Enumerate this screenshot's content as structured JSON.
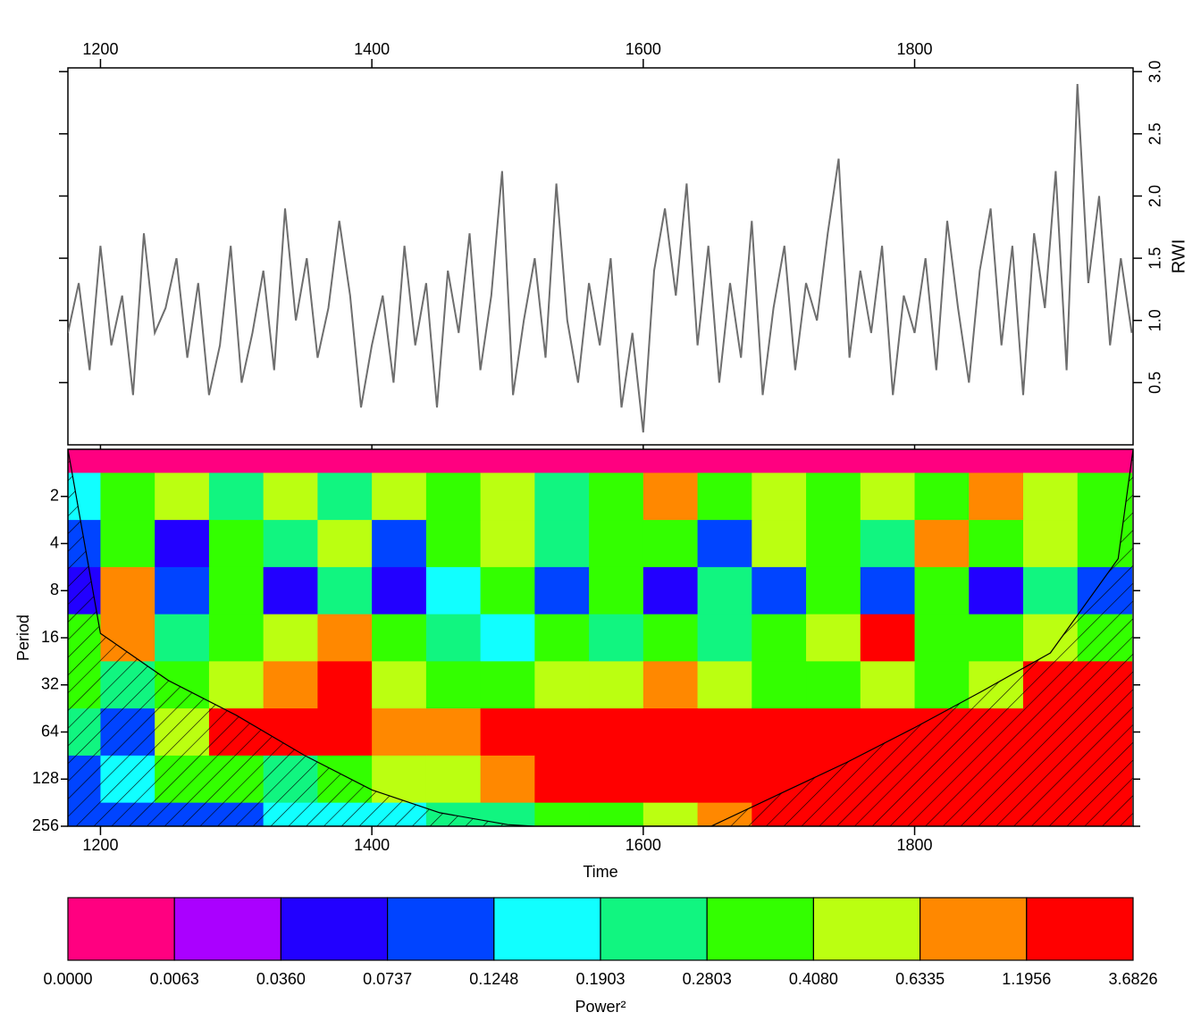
{
  "chart_data": [
    {
      "type": "line",
      "ylabel": "RWI",
      "color": "#6e6e6e",
      "x_axis_position": "top",
      "y_axis_position": "right",
      "xlim": [
        1176,
        1961
      ],
      "xticks": [
        1200,
        1400,
        1600,
        1800
      ],
      "ylim": [
        0,
        3.03
      ],
      "yticks": [
        0.5,
        {
          "value": 1,
          "label": "1.0"
        },
        1.5,
        {
          "value": 2,
          "label": "2.0"
        },
        2.5,
        {
          "value": 3,
          "label": "3.0"
        }
      ],
      "x": [
        1176,
        1184,
        1192,
        1200,
        1208,
        1216,
        1224,
        1232,
        1240,
        1248,
        1256,
        1264,
        1272,
        1280,
        1288,
        1296,
        1304,
        1312,
        1320,
        1328,
        1336,
        1344,
        1352,
        1360,
        1368,
        1376,
        1384,
        1392,
        1400,
        1408,
        1416,
        1424,
        1432,
        1440,
        1448,
        1456,
        1464,
        1472,
        1480,
        1488,
        1496,
        1504,
        1512,
        1520,
        1528,
        1536,
        1544,
        1552,
        1560,
        1568,
        1576,
        1584,
        1592,
        1600,
        1608,
        1616,
        1624,
        1632,
        1640,
        1648,
        1656,
        1664,
        1672,
        1680,
        1688,
        1696,
        1704,
        1712,
        1720,
        1728,
        1736,
        1744,
        1752,
        1760,
        1768,
        1776,
        1784,
        1792,
        1800,
        1808,
        1816,
        1824,
        1832,
        1840,
        1848,
        1856,
        1864,
        1872,
        1880,
        1888,
        1896,
        1904,
        1912,
        1920,
        1928,
        1936,
        1944,
        1952,
        1960
      ],
      "values": [
        0.9,
        1.3,
        0.6,
        1.6,
        0.8,
        1.2,
        0.4,
        1.7,
        0.9,
        1.1,
        1.5,
        0.7,
        1.3,
        0.4,
        0.8,
        1.6,
        0.5,
        0.9,
        1.4,
        0.6,
        1.9,
        1.0,
        1.5,
        0.7,
        1.1,
        1.8,
        1.2,
        0.3,
        0.8,
        1.2,
        0.5,
        1.6,
        0.8,
        1.3,
        0.3,
        1.4,
        0.9,
        1.7,
        0.6,
        1.2,
        2.2,
        0.4,
        1.0,
        1.5,
        0.7,
        2.1,
        1.0,
        0.5,
        1.3,
        0.8,
        1.5,
        0.3,
        0.9,
        0.1,
        1.4,
        1.9,
        1.2,
        2.1,
        0.8,
        1.6,
        0.5,
        1.3,
        0.7,
        1.8,
        0.4,
        1.1,
        1.6,
        0.6,
        1.3,
        1.0,
        1.7,
        2.3,
        0.7,
        1.4,
        0.9,
        1.6,
        0.4,
        1.2,
        0.9,
        1.5,
        0.6,
        1.8,
        1.1,
        0.5,
        1.4,
        1.9,
        0.8,
        1.6,
        0.4,
        1.7,
        1.1,
        2.2,
        0.6,
        2.9,
        1.3,
        2.0,
        0.8,
        1.5,
        0.9
      ]
    },
    {
      "type": "heatmap",
      "xlabel": "Time",
      "ylabel": "Period",
      "log_y": true,
      "xlim": [
        1176,
        1961
      ],
      "xticks": [
        1200,
        1400,
        1600,
        1800
      ],
      "ylim": [
        1,
        256
      ],
      "yticks": [
        2,
        4,
        8,
        16,
        32,
        64,
        128,
        256
      ],
      "times": [
        1180,
        1220,
        1260,
        1300,
        1340,
        1380,
        1420,
        1460,
        1500,
        1540,
        1580,
        1620,
        1660,
        1700,
        1740,
        1780,
        1820,
        1860,
        1900,
        1940
      ],
      "periods": [
        1,
        2,
        4,
        8,
        16,
        32,
        64,
        128,
        256
      ],
      "power": [
        [
          0.003,
          0.003,
          0.003,
          0.003,
          0.003,
          0.003,
          0.003,
          0.003,
          0.003,
          0.003,
          0.003,
          0.003,
          0.003,
          0.003,
          0.003,
          0.003,
          0.003,
          0.003,
          0.003,
          0.003
        ],
        [
          0.15,
          0.3,
          0.5,
          0.2,
          0.45,
          0.25,
          0.6,
          0.3,
          0.5,
          0.25,
          0.4,
          0.7,
          0.3,
          0.5,
          0.35,
          0.6,
          0.3,
          0.8,
          0.5,
          0.4
        ],
        [
          0.1,
          0.3,
          0.05,
          0.4,
          0.2,
          0.5,
          0.1,
          0.3,
          0.6,
          0.2,
          0.3,
          0.4,
          0.1,
          0.5,
          0.3,
          0.2,
          0.9,
          0.4,
          0.6,
          0.3
        ],
        [
          0.05,
          0.7,
          0.1,
          0.3,
          0.04,
          0.2,
          0.07,
          0.15,
          0.4,
          0.1,
          0.3,
          0.05,
          0.2,
          0.08,
          0.4,
          0.1,
          0.3,
          0.06,
          0.2,
          0.1
        ],
        [
          0.3,
          0.9,
          0.2,
          0.4,
          0.5,
          0.8,
          0.3,
          0.2,
          0.15,
          0.3,
          0.25,
          0.4,
          0.2,
          0.3,
          0.5,
          1.3,
          0.4,
          0.3,
          0.5,
          0.4
        ],
        [
          0.4,
          0.2,
          0.3,
          0.5,
          0.7,
          1.3,
          0.6,
          0.4,
          0.3,
          0.5,
          0.6,
          0.7,
          0.5,
          0.4,
          0.3,
          0.5,
          0.4,
          0.6,
          1.5,
          1.3
        ],
        [
          0.2,
          0.1,
          0.6,
          1.4,
          1.6,
          1.5,
          0.9,
          0.8,
          1.4,
          1.8,
          2.0,
          2.2,
          1.9,
          1.5,
          1.6,
          1.4,
          1.3,
          1.4,
          1.3,
          1.2
        ],
        [
          0.1,
          0.15,
          0.3,
          0.4,
          0.25,
          0.3,
          0.5,
          0.6,
          0.9,
          1.2,
          1.5,
          1.6,
          1.4,
          1.3,
          1.4,
          1.3,
          1.5,
          1.8,
          2.0,
          2.1
        ],
        [
          0.08,
          0.1,
          0.1,
          0.12,
          0.14,
          0.15,
          0.18,
          0.2,
          0.25,
          0.3,
          0.4,
          0.6,
          0.9,
          1.3,
          1.6,
          1.8,
          2.0,
          2.2,
          2.4,
          2.5
        ]
      ],
      "coi_x": [
        1176,
        1200,
        1250,
        1300,
        1350,
        1400,
        1450,
        1500,
        1520,
        1650,
        1700,
        1750,
        1800,
        1850,
        1900,
        1950,
        1961
      ],
      "coi_period": [
        1,
        15,
        30,
        50,
        90,
        150,
        210,
        250,
        256,
        256,
        160,
        100,
        60,
        35,
        20,
        5,
        1
      ],
      "colorbar_label": "Power²",
      "levels": [
        {
          "value": 0,
          "label": "0.0000"
        },
        0.0063,
        {
          "value": 0.036,
          "label": "0.0360"
        },
        0.0737,
        0.1248,
        0.1903,
        0.2803,
        {
          "value": 0.408,
          "label": "0.4080"
        },
        0.6335,
        1.1956,
        3.6826
      ],
      "colors": [
        "#ff0080",
        "#aa00ff",
        "#2200ff",
        "#0044ff",
        "#11ffff",
        "#11f580",
        "#33ff00",
        "#bbff11",
        "#ff8800",
        "#ff0000"
      ]
    }
  ]
}
